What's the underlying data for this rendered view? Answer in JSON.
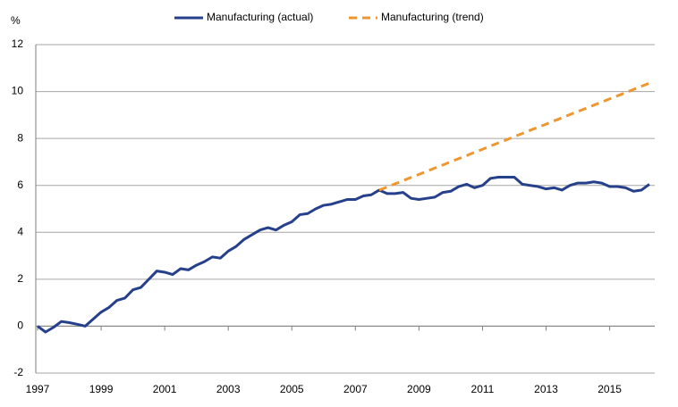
{
  "chart_data": {
    "type": "line",
    "y_label": "%",
    "x": [
      1997,
      1997.25,
      1997.5,
      1997.75,
      1998,
      1998.25,
      1998.5,
      1998.75,
      1999,
      1999.25,
      1999.5,
      1999.75,
      2000,
      2000.25,
      2000.5,
      2000.75,
      2001,
      2001.25,
      2001.5,
      2001.75,
      2002,
      2002.25,
      2002.5,
      2002.75,
      2003,
      2003.25,
      2003.5,
      2003.75,
      2004,
      2004.25,
      2004.5,
      2004.75,
      2005,
      2005.25,
      2005.5,
      2005.75,
      2006,
      2006.25,
      2006.5,
      2006.75,
      2007,
      2007.25,
      2007.5,
      2007.75,
      2008,
      2008.25,
      2008.5,
      2008.75,
      2009,
      2009.25,
      2009.5,
      2009.75,
      2010,
      2010.25,
      2010.5,
      2010.75,
      2011,
      2011.25,
      2011.5,
      2011.75,
      2012,
      2012.25,
      2012.5,
      2012.75,
      2013,
      2013.25,
      2013.5,
      2013.75,
      2014,
      2014.25,
      2014.5,
      2014.75,
      2015,
      2015.25,
      2015.5,
      2015.75,
      2016,
      2016.25
    ],
    "series": [
      {
        "name": "Manufacturing (actual)",
        "color": "#26408b",
        "dashed": false,
        "values": [
          0,
          -0.25,
          -0.05,
          0.2,
          0.15,
          0.08,
          0.0,
          0.3,
          0.6,
          0.8,
          1.1,
          1.2,
          1.55,
          1.65,
          2.0,
          2.35,
          2.3,
          2.2,
          2.45,
          2.4,
          2.6,
          2.75,
          2.95,
          2.9,
          3.2,
          3.4,
          3.7,
          3.9,
          4.1,
          4.2,
          4.1,
          4.3,
          4.45,
          4.75,
          4.8,
          5.0,
          5.15,
          5.2,
          5.3,
          5.4,
          5.4,
          5.55,
          5.6,
          5.8,
          5.65,
          5.65,
          5.7,
          5.45,
          5.4,
          5.45,
          5.5,
          5.7,
          5.75,
          5.95,
          6.05,
          5.9,
          6.0,
          6.3,
          6.35,
          6.35,
          6.35,
          6.05,
          6.0,
          5.95,
          5.85,
          5.9,
          5.8,
          6.0,
          6.1,
          6.1,
          6.15,
          6.1,
          5.95,
          5.95,
          5.9,
          5.75,
          5.8,
          6.05
        ]
      },
      {
        "name": "Manufacturing (trend)",
        "color": "#f0962e",
        "dashed": true,
        "values": [
          null,
          null,
          null,
          null,
          null,
          null,
          null,
          null,
          null,
          null,
          null,
          null,
          null,
          null,
          null,
          null,
          null,
          null,
          null,
          null,
          null,
          null,
          null,
          null,
          null,
          null,
          null,
          null,
          null,
          null,
          null,
          null,
          null,
          null,
          null,
          null,
          null,
          null,
          null,
          null,
          null,
          null,
          null,
          5.8,
          5.93,
          6.07,
          6.2,
          6.34,
          6.47,
          6.6,
          6.74,
          6.87,
          7.01,
          7.14,
          7.27,
          7.41,
          7.54,
          7.68,
          7.81,
          7.94,
          8.08,
          8.21,
          8.35,
          8.48,
          8.61,
          8.75,
          8.88,
          9.02,
          9.15,
          9.28,
          9.42,
          9.55,
          9.69,
          9.82,
          9.95,
          10.09,
          10.22,
          10.36
        ]
      }
    ],
    "xlim": [
      1997,
      2016.25
    ],
    "xticks": [
      1997,
      1999,
      2001,
      2003,
      2005,
      2007,
      2009,
      2011,
      2013,
      2015
    ],
    "ylim": [
      -2,
      12
    ],
    "yticks": [
      -2,
      0,
      2,
      4,
      6,
      8,
      10,
      12
    ],
    "grid": true,
    "legend": "top"
  }
}
